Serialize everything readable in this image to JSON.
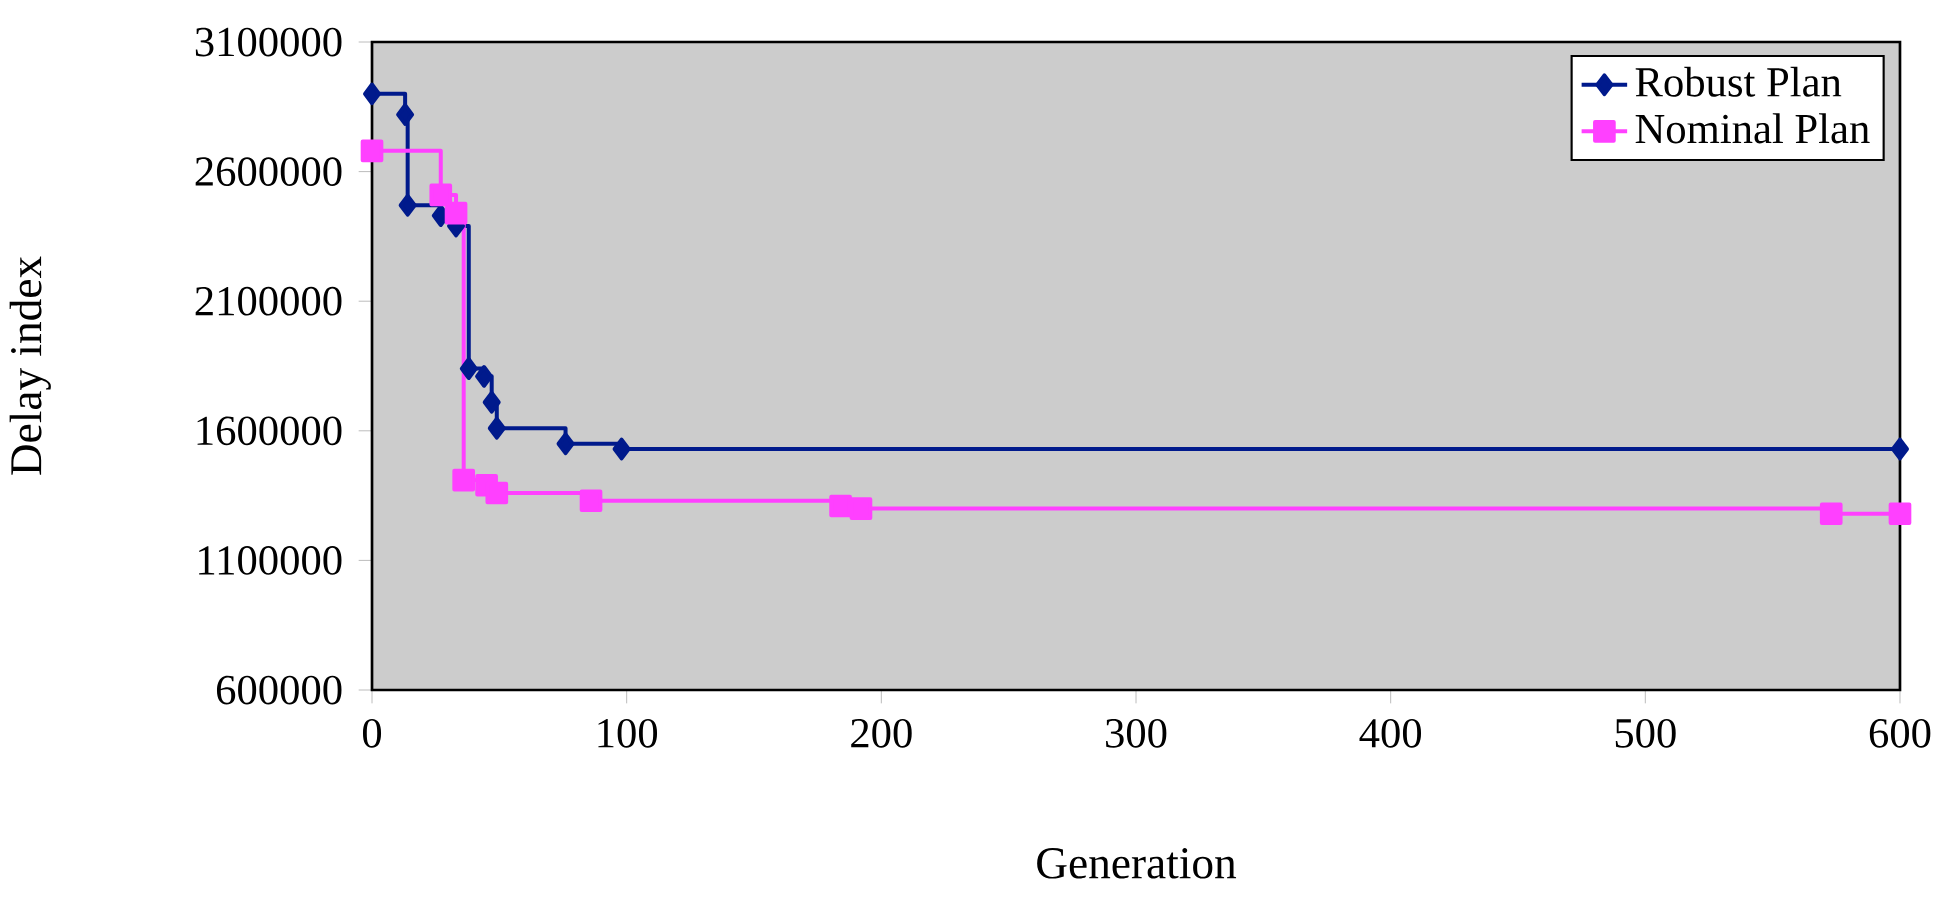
{
  "chart_data": {
    "type": "step",
    "xlabel": "Generation",
    "ylabel": "Delay index",
    "xlim": [
      0,
      600
    ],
    "xticks": [
      0,
      100,
      200,
      300,
      400,
      500,
      600
    ],
    "ylim": [
      600000,
      3100000
    ],
    "yticks": [
      600000,
      1100000,
      1600000,
      2100000,
      2600000,
      3100000
    ],
    "legend": "top right",
    "grid": false,
    "series": [
      {
        "name": "Robust Plan",
        "color": "#001a8c",
        "marker": "diamond",
        "x": [
          0,
          13,
          14,
          27,
          33,
          38,
          44,
          47,
          49,
          76,
          98,
          600
        ],
        "values": [
          2900000,
          2820000,
          2470000,
          2430000,
          2390000,
          1840000,
          1810000,
          1710000,
          1610000,
          1550000,
          1530000,
          1530000
        ]
      },
      {
        "name": "Nominal Plan",
        "color": "#ff40ff",
        "marker": "square",
        "x": [
          0,
          27,
          33,
          36,
          45,
          49,
          86,
          184,
          192,
          573,
          600
        ],
        "values": [
          2680000,
          2510000,
          2440000,
          1410000,
          1390000,
          1360000,
          1330000,
          1310000,
          1300000,
          1280000,
          1280000
        ]
      }
    ]
  }
}
